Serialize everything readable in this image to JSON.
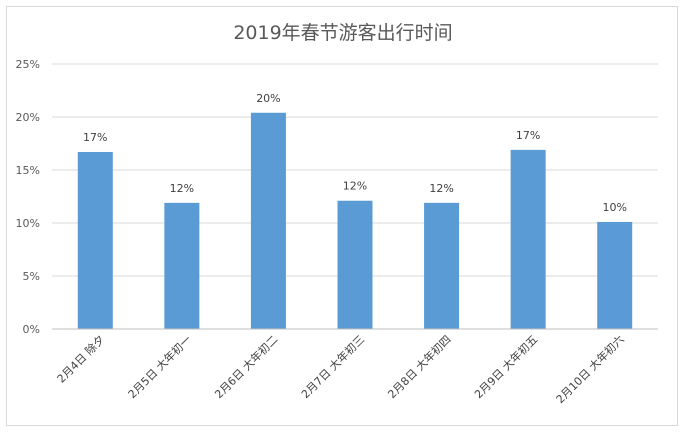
{
  "chart_data": {
    "type": "bar",
    "title": "2019年春节游客出行时间",
    "xlabel": "",
    "ylabel": "",
    "categories": [
      "2月4日 除夕",
      "2月5日 大年初一",
      "2月6日 大年初二",
      "2月7日 大年初三",
      "2月8日 大年初四",
      "2月9日 大年初五",
      "2月10日 大年初六"
    ],
    "values": [
      16.7,
      11.9,
      20.4,
      12.1,
      11.9,
      16.9,
      10.1
    ],
    "data_labels": [
      "17%",
      "12%",
      "20%",
      "12%",
      "12%",
      "17%",
      "10%"
    ],
    "ylim": [
      0,
      25
    ],
    "yticks": [
      0,
      5,
      10,
      15,
      20,
      25
    ],
    "ytick_labels": [
      "0%",
      "5%",
      "10%",
      "15%",
      "20%",
      "25%"
    ],
    "grid": true,
    "legend": "none",
    "bar_color": "#5b9bd5"
  }
}
